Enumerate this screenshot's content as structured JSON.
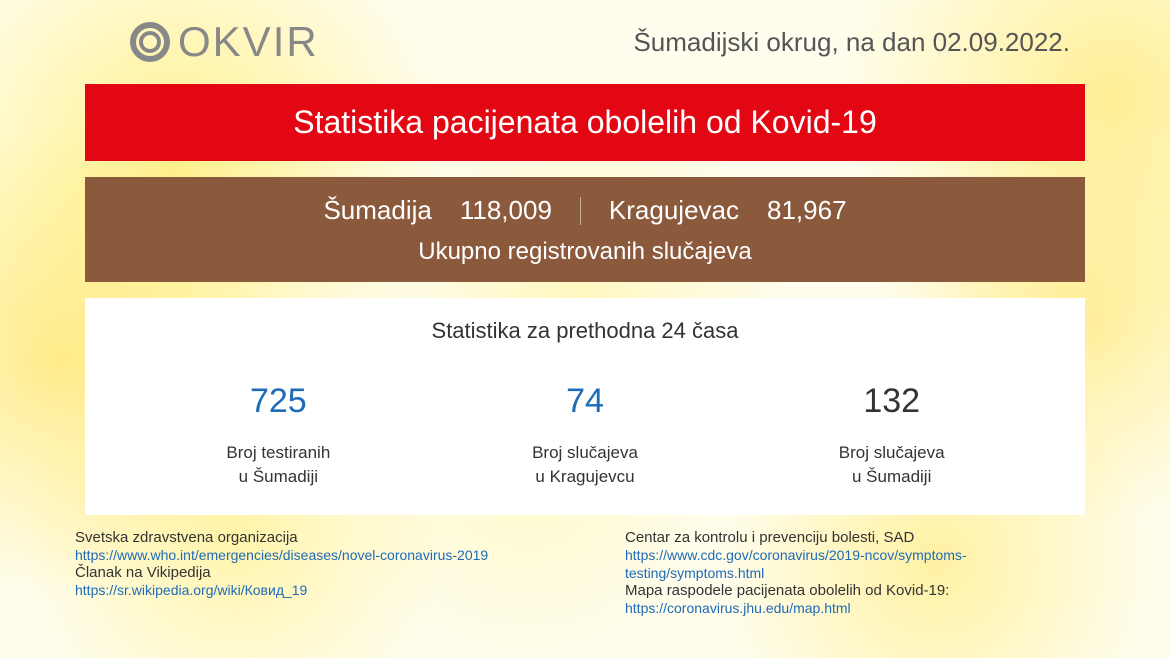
{
  "logo": {
    "text": "OKVIR",
    "color": "#888888"
  },
  "header": {
    "region_prefix": "Šumadijski okrug, na dan ",
    "date": "02.09.2022."
  },
  "red_banner": {
    "text": "Statistika pacijenata obolelih od Kovid-19",
    "background_color": "#e30613",
    "text_color": "#ffffff"
  },
  "brown_box": {
    "background_color": "#8b5a3c",
    "text_color": "#ffffff",
    "region1_label": "Šumadija",
    "region1_value": "118,009",
    "region2_label": "Kragujevac",
    "region2_value": "81,967",
    "subtitle": "Ukupno registrovanih slučajeva"
  },
  "white_box": {
    "background_color": "#ffffff",
    "title": "Statistika za prethodna 24 časa",
    "stats": [
      {
        "value": "725",
        "value_color": "#1e6bb8",
        "label": "Broj testiranih\nu Šumadiji"
      },
      {
        "value": "74",
        "value_color": "#1e6bb8",
        "label": "Broj slučajeva\nu Kragujevcu"
      },
      {
        "value": "132",
        "value_color": "#333333",
        "label": "Broj slučajeva\nu Šumadiji"
      }
    ]
  },
  "footer": {
    "link_color": "#1e6bb8",
    "left": [
      {
        "title": "Svetska zdravstvena organizacija",
        "url": "https://www.who.int/emergencies/diseases/novel-coronavirus-2019"
      },
      {
        "title": "Članak na Vikipedija",
        "url": "https://sr.wikipedia.org/wiki/Ковид_19"
      }
    ],
    "right": [
      {
        "title": "Centar za kontrolu i prevenciju bolesti, SAD",
        "url": "https://www.cdc.gov/coronavirus/2019-ncov/symptoms-testing/symptoms.html"
      },
      {
        "title": "Mapa raspodele pacijenata obolelih od Kovid-19:",
        "url": "https://coronavirus.jhu.edu/map.html"
      }
    ]
  }
}
